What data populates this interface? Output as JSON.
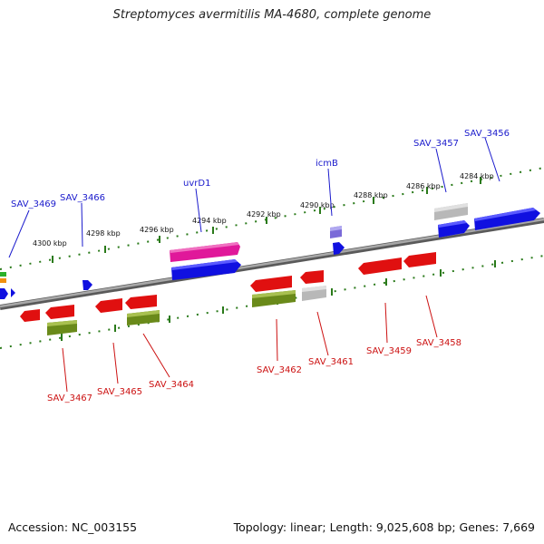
{
  "title": "Streptomyces avermitilis MA-4680, complete genome",
  "footer": {
    "accession": "Accession: NC_003155",
    "summary": "Topology: linear; Length: 9,025,608 bp; Genes: 7,669"
  },
  "kbp_ticks": [
    "4300 kbp",
    "4298 kbp",
    "4296 kbp",
    "4294 kbp",
    "4292 kbp",
    "4290 kbp",
    "4288 kbp",
    "4286 kbp",
    "4284 kbp"
  ],
  "upper_genes": [
    "SAV_3469",
    "SAV_3466",
    "uvrD1",
    "icmB",
    "SAV_3457",
    "SAV_3456"
  ],
  "lower_genes": [
    "SAV_3467",
    "SAV_3465",
    "SAV_3464",
    "SAV_3462",
    "SAV_3461",
    "SAV_3459",
    "SAV_3458"
  ],
  "colors": {
    "backbone": "#8a8a8a",
    "tick_green": "#2a7a1a",
    "forward_blue": "#1010e0",
    "reverse_red": "#e01010",
    "pink": "#e0189a",
    "olive": "#6a8a1a",
    "gray": "#b8b8b8",
    "purple": "#7a6ad8",
    "upper_label": "#1a1acc",
    "lower_label": "#cc1111"
  }
}
